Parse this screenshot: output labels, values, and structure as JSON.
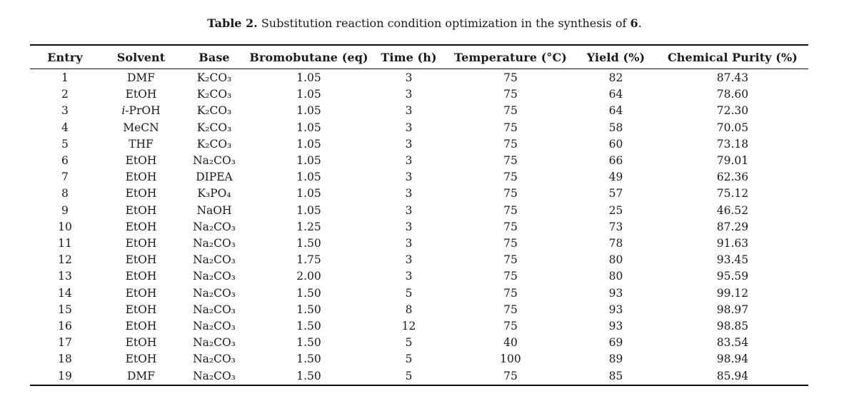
{
  "caption": {
    "label": "Table 2.",
    "text": " Substitution reaction condition optimization in the synthesis of ",
    "compound": "6",
    "suffix": "."
  },
  "table": {
    "columns": [
      "Entry",
      "Solvent",
      "Base",
      "Bromobutane (eq)",
      "Time (h)",
      "Temperature (°C)",
      "Yield (%)",
      "Chemical Purity (%)"
    ],
    "rows": [
      [
        "1",
        "DMF",
        "K₂CO₃",
        "1.05",
        "3",
        "75",
        "82",
        "87.43"
      ],
      [
        "2",
        "EtOH",
        "K₂CO₃",
        "1.05",
        "3",
        "75",
        "64",
        "78.60"
      ],
      [
        "3",
        "i-PrOH",
        "K₂CO₃",
        "1.05",
        "3",
        "75",
        "64",
        "72.30"
      ],
      [
        "4",
        "MeCN",
        "K₂CO₃",
        "1.05",
        "3",
        "75",
        "58",
        "70.05"
      ],
      [
        "5",
        "THF",
        "K₂CO₃",
        "1.05",
        "3",
        "75",
        "60",
        "73.18"
      ],
      [
        "6",
        "EtOH",
        "Na₂CO₃",
        "1.05",
        "3",
        "75",
        "66",
        "79.01"
      ],
      [
        "7",
        "EtOH",
        "DIPEA",
        "1.05",
        "3",
        "75",
        "49",
        "62.36"
      ],
      [
        "8",
        "EtOH",
        "K₃PO₄",
        "1.05",
        "3",
        "75",
        "57",
        "75.12"
      ],
      [
        "9",
        "EtOH",
        "NaOH",
        "1.05",
        "3",
        "75",
        "25",
        "46.52"
      ],
      [
        "10",
        "EtOH",
        "Na₂CO₃",
        "1.25",
        "3",
        "75",
        "73",
        "87.29"
      ],
      [
        "11",
        "EtOH",
        "Na₂CO₃",
        "1.50",
        "3",
        "75",
        "78",
        "91.63"
      ],
      [
        "12",
        "EtOH",
        "Na₂CO₃",
        "1.75",
        "3",
        "75",
        "80",
        "93.45"
      ],
      [
        "13",
        "EtOH",
        "Na₂CO₃",
        "2.00",
        "3",
        "75",
        "80",
        "95.59"
      ],
      [
        "14",
        "EtOH",
        "Na₂CO₃",
        "1.50",
        "5",
        "75",
        "93",
        "99.12"
      ],
      [
        "15",
        "EtOH",
        "Na₂CO₃",
        "1.50",
        "8",
        "75",
        "93",
        "98.97"
      ],
      [
        "16",
        "EtOH",
        "Na₂CO₃",
        "1.50",
        "12",
        "75",
        "93",
        "98.85"
      ],
      [
        "17",
        "EtOH",
        "Na₂CO₃",
        "1.50",
        "5",
        "40",
        "69",
        "83.54"
      ],
      [
        "18",
        "EtOH",
        "Na₂CO₃",
        "1.50",
        "5",
        "100",
        "89",
        "98.94"
      ],
      [
        "19",
        "DMF",
        "Na₂CO₃",
        "1.50",
        "5",
        "75",
        "85",
        "85.94"
      ]
    ]
  }
}
